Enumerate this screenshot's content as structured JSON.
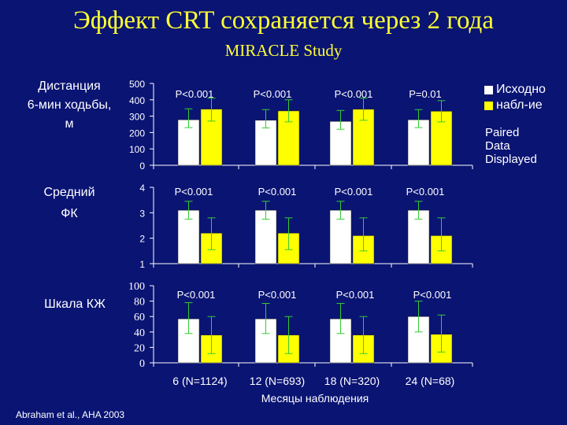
{
  "slide": {
    "title": "Эффект CRT сохраняется через 2 года",
    "subtitle": "MIRACLE Study",
    "footer": "Abraham et al., AHA 2003",
    "paired_note": [
      "Paired",
      "Data",
      "Displayed"
    ]
  },
  "colors": {
    "background": "#0a1473",
    "title": "#ffff33",
    "baseline_bar": "#ffffff",
    "followup_bar": "#ffff00",
    "error_bar": "#33cc33",
    "text": "#ffffff"
  },
  "chart_data": [
    {
      "type": "bar",
      "ylabel": "Дистанция 6-мин ходьбы, м",
      "ylabel_lines": [
        "Дистанция",
        "6-мин ходьбы,",
        "м"
      ],
      "ylim": [
        0,
        500
      ],
      "yticks": [
        "0",
        "100",
        "200",
        "300",
        "400",
        "500"
      ],
      "categories": [
        "6 (N=1124)",
        "12 (N=693)",
        "18 (N=320)",
        "24 (N=68)"
      ],
      "series": [
        {
          "name": "Исходно",
          "values": [
            278,
            275,
            268,
            278
          ],
          "errors": [
            [
              230,
              345
            ],
            [
              228,
              340
            ],
            [
              220,
              335
            ],
            [
              230,
              340
            ]
          ]
        },
        {
          "name": "набл-ие",
          "values": [
            343,
            332,
            342,
            330
          ],
          "errors": [
            [
              270,
              410
            ],
            [
              265,
              400
            ],
            [
              275,
              410
            ],
            [
              265,
              395
            ]
          ]
        }
      ],
      "p_values": [
        "P<0.001",
        "P<0.001",
        "P<0.001",
        "P=0.01"
      ]
    },
    {
      "type": "bar",
      "ylabel": "Средний ФК",
      "ylabel_lines": [
        "Средний",
        "ФК"
      ],
      "ylim": [
        1,
        4
      ],
      "yticks": [
        "1",
        "2",
        "3",
        "4"
      ],
      "categories": [
        "6 (N=1124)",
        "12 (N=693)",
        "18 (N=320)",
        "24 (N=68)"
      ],
      "series": [
        {
          "name": "Исходно",
          "values": [
            3.1,
            3.1,
            3.1,
            3.1
          ],
          "errors": [
            [
              2.75,
              3.45
            ],
            [
              2.75,
              3.45
            ],
            [
              2.75,
              3.45
            ],
            [
              2.75,
              3.45
            ]
          ]
        },
        {
          "name": "набл-ие",
          "values": [
            2.2,
            2.2,
            2.1,
            2.1
          ],
          "errors": [
            [
              1.55,
              2.8
            ],
            [
              1.55,
              2.8
            ],
            [
              1.5,
              2.8
            ],
            [
              1.5,
              2.8
            ]
          ]
        }
      ],
      "p_values": [
        "P<0.001",
        "P<0.001",
        "P<0.001",
        "P<0.001"
      ]
    },
    {
      "type": "bar",
      "ylabel": "Шкала КЖ",
      "ylabel_lines": [
        "Шкала КЖ"
      ],
      "ylim": [
        0,
        100
      ],
      "yticks": [
        "0",
        "20",
        "40",
        "60",
        "80",
        "100"
      ],
      "categories": [
        "6 (N=1124)",
        "12 (N=693)",
        "18 (N=320)",
        "24 (N=68)"
      ],
      "series": [
        {
          "name": "Исходно",
          "values": [
            57,
            57,
            57,
            60
          ],
          "errors": [
            [
              38,
              78
            ],
            [
              38,
              77
            ],
            [
              38,
              77
            ],
            [
              40,
              80
            ]
          ]
        },
        {
          "name": "набл-ие",
          "values": [
            36,
            36,
            36,
            37
          ],
          "errors": [
            [
              12,
              60
            ],
            [
              12,
              60
            ],
            [
              12,
              60
            ],
            [
              14,
              62
            ]
          ]
        }
      ],
      "p_values": [
        "P<0.001",
        "P<0.001",
        "P<0.001",
        "P<0.001"
      ]
    }
  ],
  "x_axis": {
    "labels": [
      "6 (N=1124)",
      "12 (N=693)",
      "18 (N=320)",
      "24 (N=68)"
    ],
    "title": "Месяцы наблюдения"
  },
  "legend": [
    {
      "label": "Исходно",
      "color": "#ffffff"
    },
    {
      "label": "набл-ие",
      "color": "#ffff00"
    }
  ]
}
